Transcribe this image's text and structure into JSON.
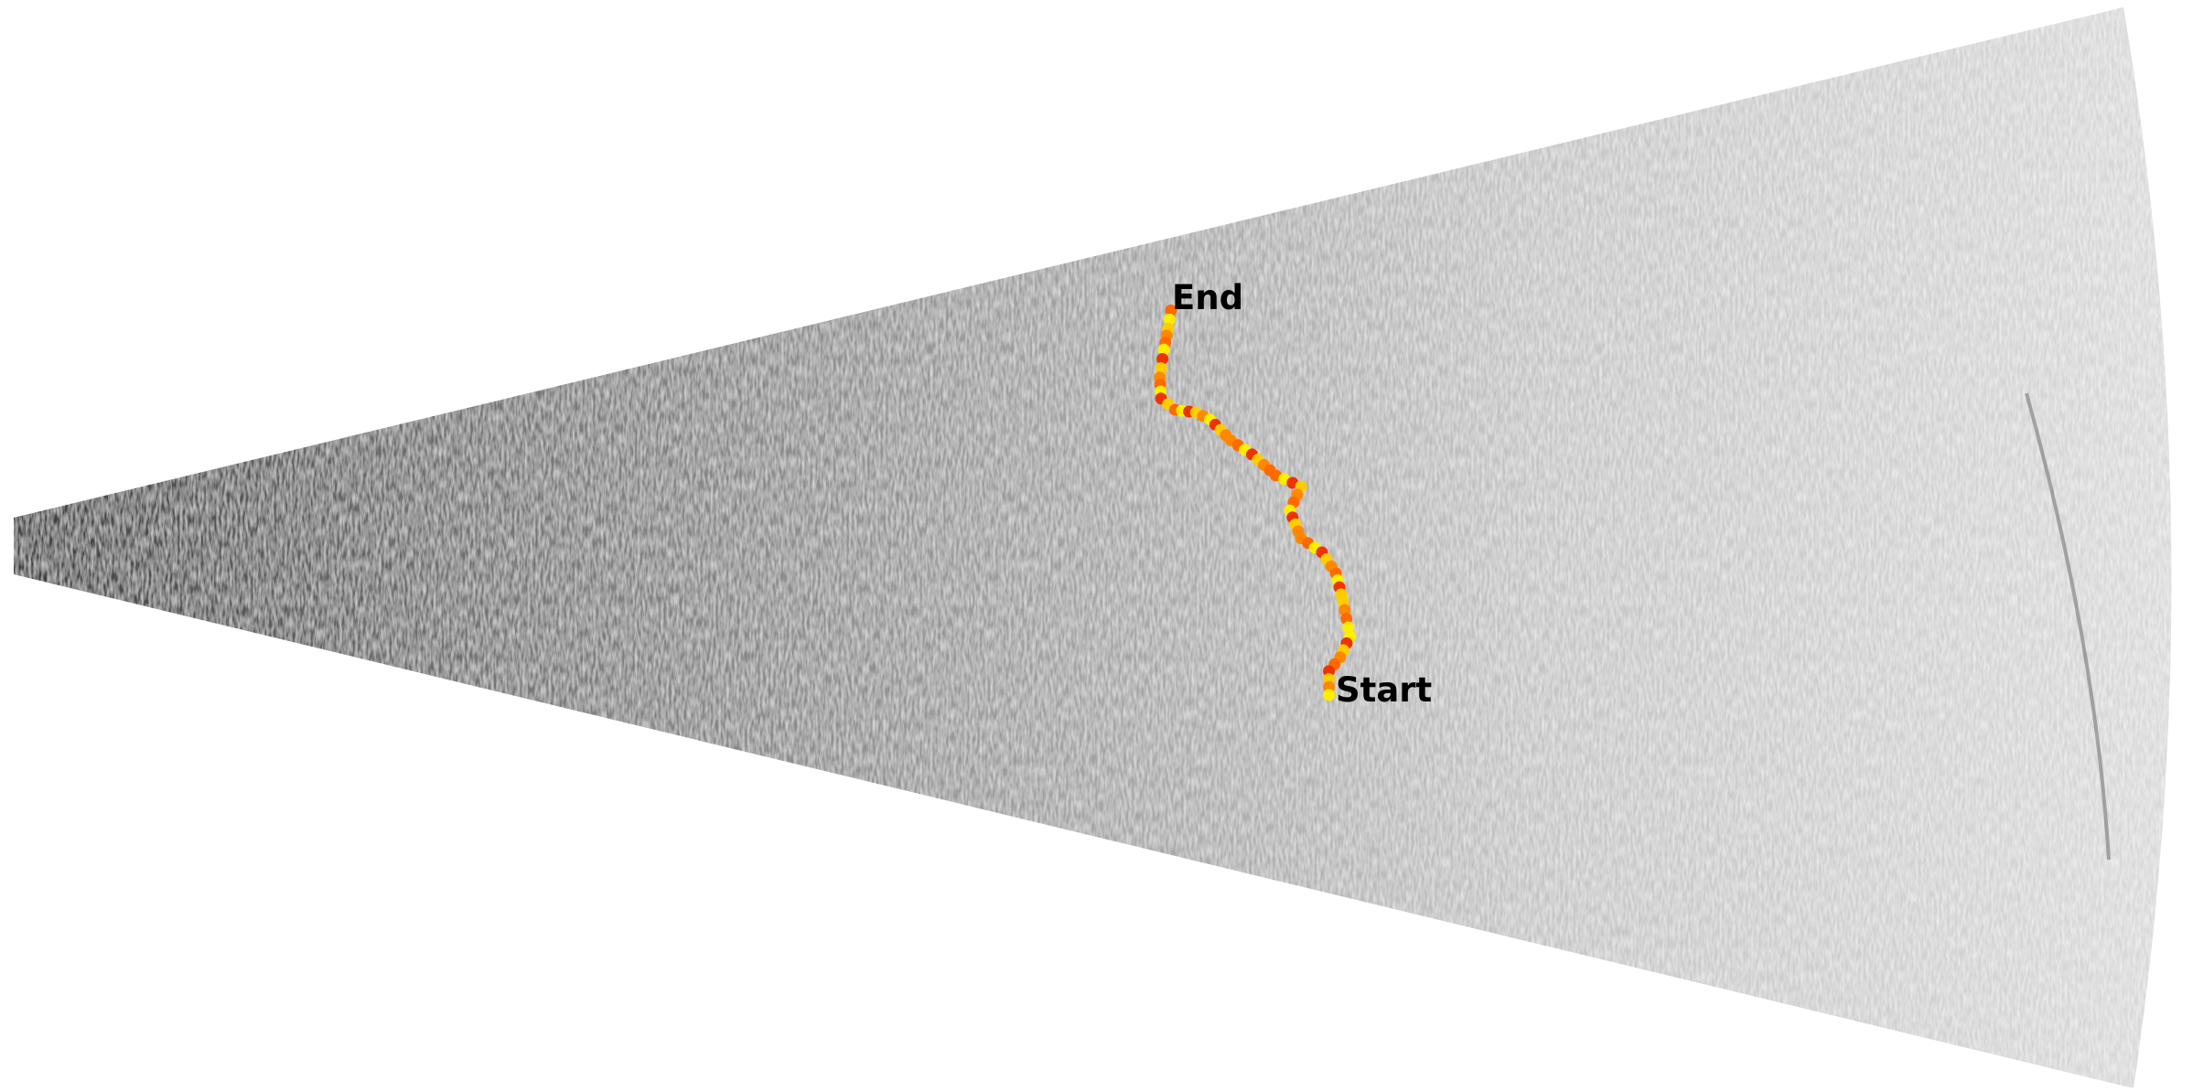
{
  "labels": {
    "end": "End",
    "start": "Start"
  }
}
